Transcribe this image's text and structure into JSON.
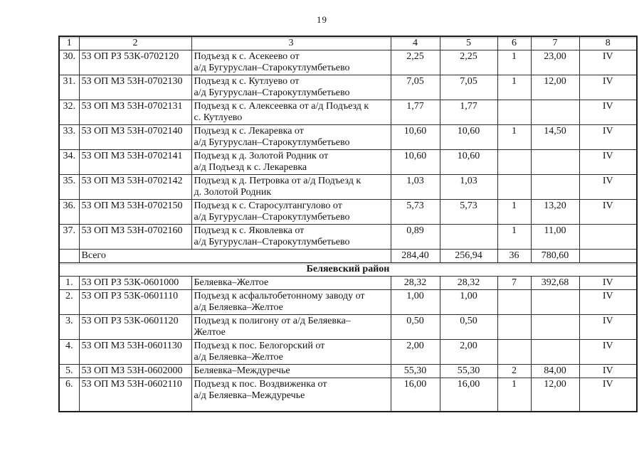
{
  "page_number": "19",
  "table": {
    "column_headers": [
      "1",
      "2",
      "3",
      "4",
      "5",
      "6",
      "7",
      "8"
    ],
    "sections": [
      {
        "rows": [
          {
            "num": "30.",
            "code": "53 ОП РЗ 53К-0702120",
            "name": "Подъезд к с. Асекеево от\nа/д Бугуруслан–Старокутлумбетьево",
            "values": [
              "2,25",
              "2,25",
              "1",
              "23,00",
              "IV"
            ]
          },
          {
            "num": "31.",
            "code": "53 ОП МЗ 53Н-0702130",
            "name": "Подъезд к с. Кутлуево от\nа/д Бугуруслан–Старокутлумбетьево",
            "values": [
              "7,05",
              "7,05",
              "1",
              "12,00",
              "IV"
            ]
          },
          {
            "num": "32.",
            "code": "53 ОП МЗ 53Н-0702131",
            "name": "Подъезд к с. Алексеевка от а/д Подъезд к\nс. Кутлуево",
            "values": [
              "1,77",
              "1,77",
              "",
              "",
              "IV"
            ]
          },
          {
            "num": "33.",
            "code": "53 ОП МЗ 53Н-0702140",
            "name": "Подъезд к с. Лекаревка от\nа/д Бугуруслан–Старокутлумбетьево",
            "values": [
              "10,60",
              "10,60",
              "1",
              "14,50",
              "IV"
            ]
          },
          {
            "num": "34.",
            "code": "53 ОП МЗ 53Н-0702141",
            "name": "Подъезд к д. Золотой Родник от\nа/д Подъезд к с. Лекаревка",
            "values": [
              "10,60",
              "10,60",
              "",
              "",
              "IV"
            ]
          },
          {
            "num": "35.",
            "code": "53 ОП МЗ 53Н-0702142",
            "name": "Подъезд к д. Петровка от а/д Подъезд к\nд. Золотой Родник",
            "values": [
              "1,03",
              "1,03",
              "",
              "",
              "IV"
            ]
          },
          {
            "num": "36.",
            "code": "53 ОП МЗ 53Н-0702150",
            "name": "Подъезд к с. Старосултангулово от\nа/д Бугуруслан–Старокутлумбетьево",
            "values": [
              "5,73",
              "5,73",
              "1",
              "13,20",
              "IV"
            ]
          },
          {
            "num": "37.",
            "code": "53 ОП МЗ 53Н-0702160",
            "name": "Подъезд к с. Яковлевка от\nа/д Бугуруслан–Старокутлумбетьево",
            "values": [
              "0,89",
              "",
              "1",
              "11,00",
              ""
            ]
          }
        ],
        "total_row": {
          "label": "Всего",
          "values": [
            "284,40",
            "256,94",
            "36",
            "780,60",
            ""
          ]
        }
      },
      {
        "section_title": "Беляевский район",
        "rows": [
          {
            "num": "1.",
            "code": "53 ОП РЗ 53К-0601000",
            "name": "Беляевка–Желтое",
            "values": [
              "28,32",
              "28,32",
              "7",
              "392,68",
              "IV"
            ]
          },
          {
            "num": "2.",
            "code": "53 ОП РЗ 53К-0601110",
            "name": "Подъезд к асфальтобетонному заводу от\nа/д Беляевка–Желтое",
            "values": [
              "1,00",
              "1,00",
              "",
              "",
              "IV"
            ]
          },
          {
            "num": "3.",
            "code": "53 ОП РЗ 53К-0601120",
            "name": "Подъезд к полигону от а/д Беляевка–\nЖелтое",
            "values": [
              "0,50",
              "0,50",
              "",
              "",
              "IV"
            ]
          },
          {
            "num": "4.",
            "code": "53 ОП МЗ 53Н-0601130",
            "name": "Подъезд к пос. Белогорский от\nа/д Беляевка–Желтое",
            "values": [
              "2,00",
              "2,00",
              "",
              "",
              "IV"
            ]
          },
          {
            "num": "5.",
            "code": "53 ОП МЗ 53Н-0602000",
            "name": "Беляевка–Междуречье",
            "values": [
              "55,30",
              "55,30",
              "2",
              "84,00",
              "IV"
            ]
          },
          {
            "num": "6.",
            "code": "53 ОП МЗ 53Н-0602110",
            "name": "Подъезд к пос. Воздвиженка от\nа/д Беляевка–Междуречье",
            "values": [
              "16,00",
              "16,00",
              "1",
              "12,00",
              "IV"
            ]
          }
        ]
      }
    ]
  }
}
